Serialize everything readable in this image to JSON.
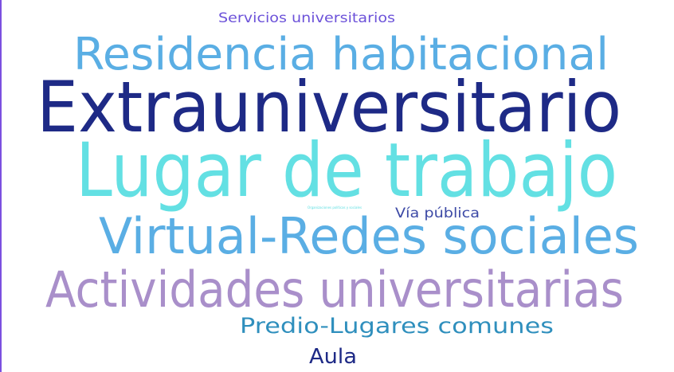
{
  "chart_data": {
    "type": "wordcloud",
    "words": [
      {
        "text": "Servicios universitarios",
        "color": "#6c52d9",
        "rank": 8
      },
      {
        "text": "Residencia habitacional",
        "color": "#5aaee4",
        "rank": 3
      },
      {
        "text": "Extrauniversitario",
        "color": "#1e2a86",
        "rank": 1
      },
      {
        "text": "Lugar de trabajo",
        "color": "#63e0e3",
        "rank": 2
      },
      {
        "text": "Organizaciones políticas y sociales",
        "color": "#63e0e3",
        "rank": 10
      },
      {
        "text": "Vía pública",
        "color": "#3d4aa6",
        "rank": 9
      },
      {
        "text": "Virtual-Redes sociales",
        "color": "#5aaee4",
        "rank": 4
      },
      {
        "text": "Actividades universitarias",
        "color": "#a98fca",
        "rank": 5
      },
      {
        "text": "Predio-Lugares comunes",
        "color": "#2f8fbd",
        "rank": 6
      },
      {
        "text": "Aula",
        "color": "#1e2a86",
        "rank": 7
      }
    ]
  }
}
